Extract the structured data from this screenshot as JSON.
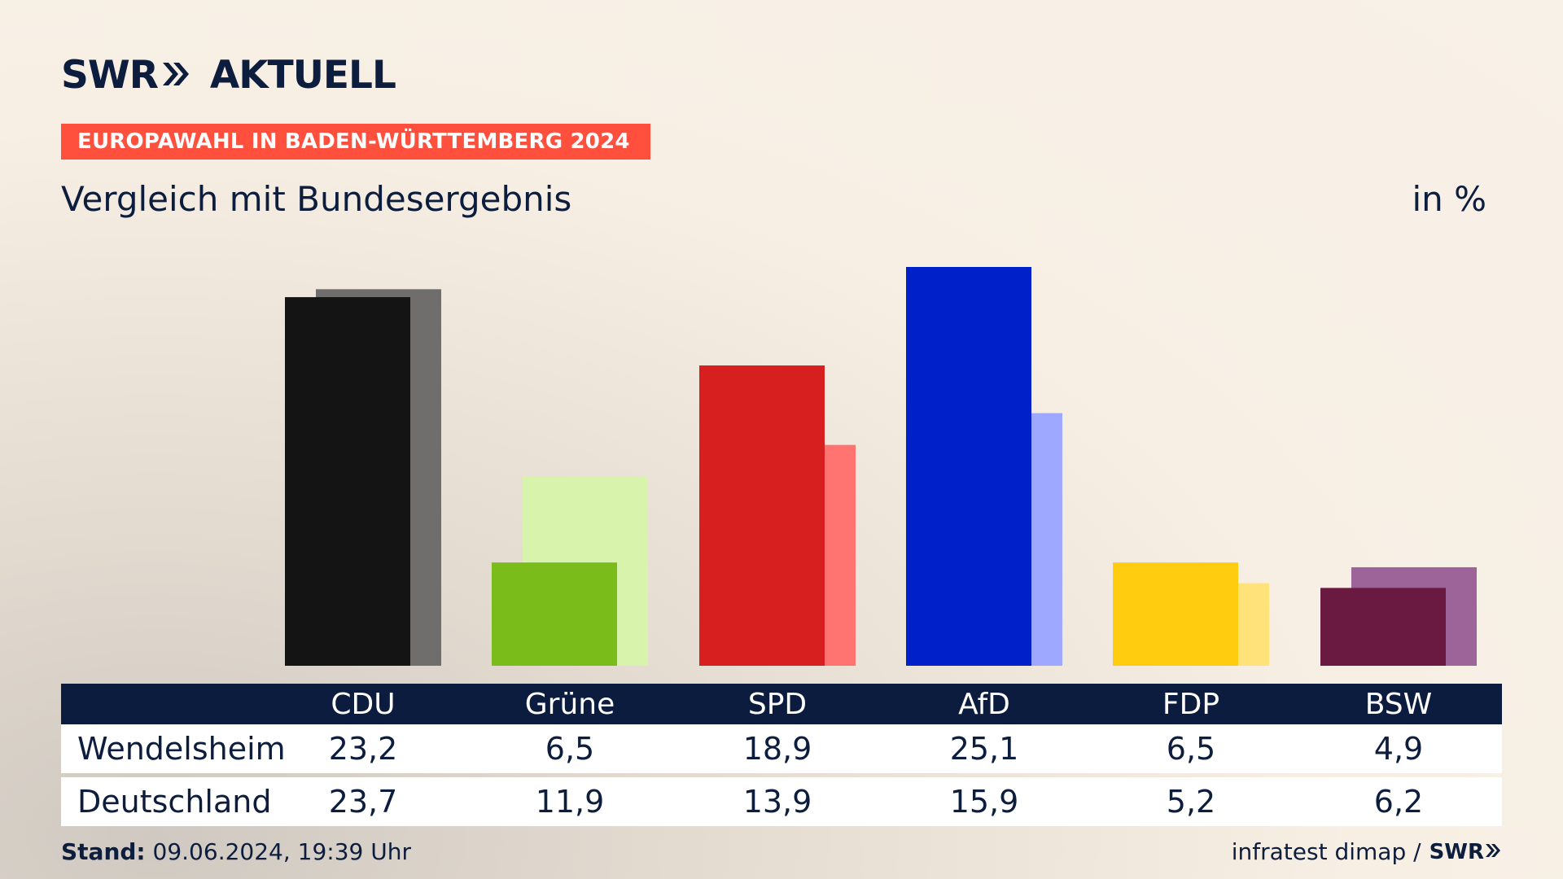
{
  "header": {
    "logo_text_1": "SWR",
    "logo_text_2": "AKTUELL",
    "banner": "EUROPAWAHL IN BADEN-WÜRTTEMBERG 2024",
    "subtitle": "Vergleich mit Bundesergebnis",
    "unit": "in %"
  },
  "chart_data": {
    "type": "bar",
    "categories": [
      "CDU",
      "Grüne",
      "SPD",
      "AfD",
      "FDP",
      "BSW"
    ],
    "series": [
      {
        "name": "Wendelsheim",
        "values": [
          23.2,
          6.5,
          18.9,
          25.1,
          6.5,
          4.9
        ]
      },
      {
        "name": "Deutschland",
        "values": [
          23.7,
          11.9,
          13.9,
          15.9,
          5.2,
          6.2
        ]
      }
    ],
    "colors": {
      "primary": [
        "#141414",
        "#7abd1a",
        "#d81f1f",
        "#0021c9",
        "#ffcc0f",
        "#6a1a40"
      ],
      "secondary": [
        "#6f6e6c",
        "#d8f3ac",
        "#ff7470",
        "#9ea8ff",
        "#ffe27a",
        "#9c6499"
      ]
    },
    "ylim": [
      0,
      25.1
    ],
    "grid": false
  },
  "table": {
    "header": [
      "CDU",
      "Grüne",
      "SPD",
      "AfD",
      "FDP",
      "BSW"
    ],
    "rows": [
      {
        "label": "Wendelsheim",
        "values": [
          "23,2",
          "6,5",
          "18,9",
          "25,1",
          "6,5",
          "4,9"
        ]
      },
      {
        "label": "Deutschland",
        "values": [
          "23,7",
          "11,9",
          "13,9",
          "15,9",
          "5,2",
          "6,2"
        ]
      }
    ]
  },
  "footer": {
    "stand_label": "Stand:",
    "stand_value": "09.06.2024, 19:39 Uhr",
    "source": "infratest dimap /",
    "source_logo": "SWR"
  }
}
